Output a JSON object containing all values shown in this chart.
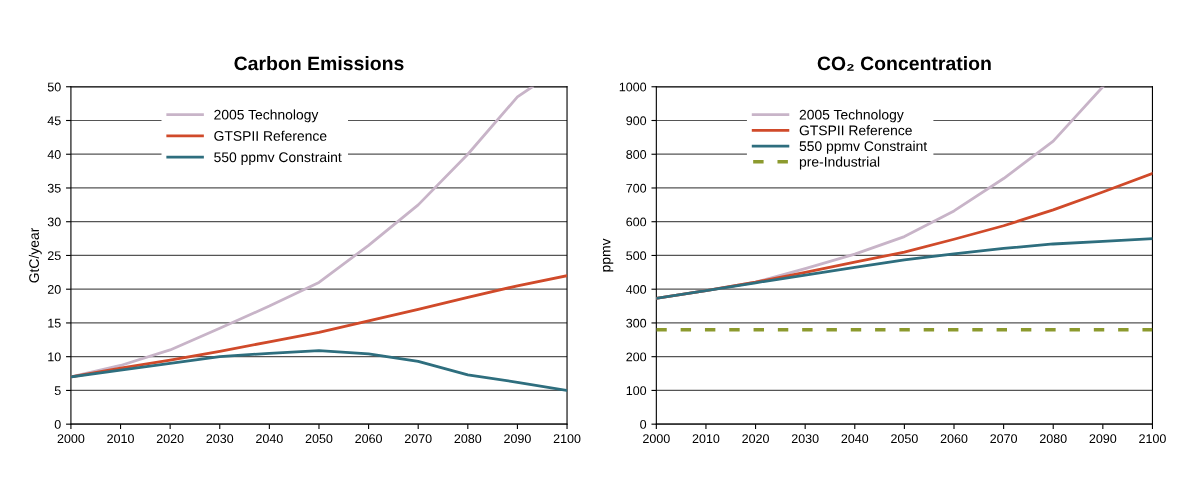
{
  "chart_data": [
    {
      "type": "line",
      "title": "Carbon Emissions",
      "ylabel": "GtC/year",
      "xlim": [
        2000,
        2100
      ],
      "xticks": [
        2000,
        2010,
        2020,
        2030,
        2040,
        2050,
        2060,
        2070,
        2080,
        2090,
        2100
      ],
      "ylim": [
        0,
        50
      ],
      "yticks": [
        0,
        5,
        10,
        15,
        20,
        25,
        30,
        35,
        40,
        45,
        50
      ],
      "grid": "y",
      "legend": "top left",
      "marker": "none",
      "series": [
        {
          "name": "2005 Technology",
          "color": "#c8b4c8",
          "x": [
            2000,
            2010,
            2020,
            2030,
            2040,
            2050,
            2060,
            2070,
            2080,
            2090,
            2093
          ],
          "values": [
            7,
            8.7,
            11,
            14.2,
            17.5,
            21,
            26.5,
            32.5,
            40,
            48.5,
            50
          ]
        },
        {
          "name": "GTSPII Reference",
          "color": "#d04a2a",
          "x": [
            2000,
            2010,
            2020,
            2030,
            2040,
            2050,
            2060,
            2070,
            2080,
            2090,
            2100
          ],
          "values": [
            7,
            8.3,
            9.5,
            10.8,
            12.2,
            13.6,
            15.3,
            17,
            18.8,
            20.5,
            22
          ]
        },
        {
          "name": "550 ppmv Constraint",
          "color": "#2e6e7e",
          "x": [
            2000,
            2010,
            2020,
            2030,
            2040,
            2050,
            2060,
            2070,
            2080,
            2090,
            2100
          ],
          "values": [
            7,
            8,
            9,
            10,
            10.5,
            10.9,
            10.4,
            9.3,
            7.3,
            6.2,
            5
          ]
        }
      ]
    },
    {
      "type": "line",
      "title": "CO₂ Concentration",
      "ylabel": "ppmv",
      "xlim": [
        2000,
        2100
      ],
      "xticks": [
        2000,
        2010,
        2020,
        2030,
        2040,
        2050,
        2060,
        2070,
        2080,
        2090,
        2100
      ],
      "ylim": [
        0,
        1000
      ],
      "yticks": [
        0,
        100,
        200,
        300,
        400,
        500,
        600,
        700,
        800,
        900,
        1000
      ],
      "grid": "y",
      "legend": "top left",
      "marker": "none",
      "series": [
        {
          "name": "2005 Technology",
          "color": "#c8b4c8",
          "x": [
            2000,
            2010,
            2020,
            2030,
            2040,
            2050,
            2060,
            2070,
            2080,
            2090
          ],
          "values": [
            373,
            396,
            421,
            461,
            504,
            556,
            632,
            728,
            839,
            1000
          ]
        },
        {
          "name": "GTSPII Reference",
          "color": "#d04a2a",
          "x": [
            2000,
            2010,
            2020,
            2030,
            2040,
            2050,
            2060,
            2070,
            2080,
            2090,
            2100
          ],
          "values": [
            373,
            396,
            421,
            450,
            480,
            510,
            548,
            588,
            635,
            688,
            743
          ]
        },
        {
          "name": "550 ppmv Constraint",
          "color": "#2e6e7e",
          "x": [
            2000,
            2010,
            2020,
            2030,
            2040,
            2050,
            2060,
            2070,
            2080,
            2090,
            2100
          ],
          "values": [
            373,
            396,
            419,
            442,
            465,
            487,
            505,
            521,
            534,
            542,
            550
          ]
        }
      ],
      "ref_lines": [
        {
          "axis": "y",
          "value": 280,
          "label": "pre-Industrial",
          "color": "#8c9a2e",
          "line_style": "dashed"
        }
      ]
    }
  ]
}
